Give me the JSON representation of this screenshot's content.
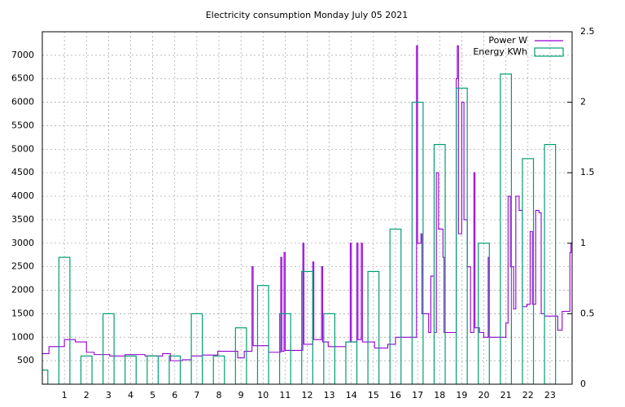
{
  "chart_data": {
    "type": "line",
    "title": "Electricity consumption Monday July 05 2021",
    "xlim": [
      0,
      24
    ],
    "xticks": [
      1,
      2,
      3,
      4,
      5,
      6,
      7,
      8,
      9,
      10,
      11,
      12,
      13,
      14,
      15,
      16,
      17,
      18,
      19,
      20,
      21,
      22,
      23
    ],
    "ylim": [
      0,
      7500
    ],
    "yticks": [
      500,
      1000,
      1500,
      2000,
      2500,
      3000,
      3500,
      4000,
      4500,
      5000,
      5500,
      6000,
      6500,
      7000
    ],
    "y2lim": [
      0,
      2.5
    ],
    "y2ticks": [
      0,
      0.5,
      1,
      1.5,
      2,
      2.5
    ],
    "grid": true,
    "legend": "top-right",
    "series": [
      {
        "name": "Power W",
        "color": "#9400d3",
        "style": "steps",
        "x": [
          0,
          0.3,
          1.0,
          1.5,
          2.0,
          2.35,
          3.05,
          3.75,
          4.65,
          5.45,
          5.8,
          6.35,
          6.75,
          7.25,
          7.95,
          8.85,
          9.15,
          9.5,
          9.55,
          10.25,
          10.8,
          10.85,
          10.95,
          11.0,
          11.8,
          11.85,
          12.25,
          12.3,
          12.65,
          12.7,
          12.95,
          13.75,
          13.95,
          14.0,
          14.25,
          14.3,
          14.45,
          14.5,
          15.05,
          15.65,
          16.0,
          16.95,
          17.0,
          17.15,
          17.2,
          17.5,
          17.6,
          17.75,
          17.85,
          17.95,
          18.15,
          18.2,
          18.75,
          18.8,
          18.85,
          19.0,
          19.1,
          19.25,
          19.4,
          19.55,
          19.6,
          19.8,
          20.0,
          20.2,
          20.25,
          20.9,
          21.0,
          21.1,
          21.2,
          21.35,
          21.45,
          21.6,
          21.75,
          21.95,
          22.1,
          22.2,
          22.35,
          22.5,
          22.6,
          22.75,
          23.35,
          23.55,
          23.9,
          23.95
        ],
        "values": [
          650,
          800,
          950,
          900,
          680,
          630,
          600,
          630,
          600,
          650,
          500,
          520,
          600,
          620,
          700,
          560,
          700,
          2500,
          820,
          680,
          2700,
          700,
          2800,
          720,
          3000,
          850,
          2600,
          950,
          2500,
          900,
          800,
          900,
          3000,
          900,
          3000,
          950,
          3000,
          900,
          770,
          850,
          1000,
          7200,
          3000,
          3200,
          1500,
          1100,
          2300,
          1100,
          4500,
          3300,
          2700,
          1100,
          6500,
          7200,
          3200,
          6000,
          3500,
          2500,
          1100,
          4500,
          1200,
          1100,
          1000,
          2700,
          1000,
          1000,
          1300,
          4000,
          2500,
          1600,
          4000,
          3700,
          1650,
          1700,
          3250,
          1700,
          3700,
          3650,
          1500,
          1450,
          1150,
          1550,
          2800,
          3000
        ]
      },
      {
        "name": "Energy KWh",
        "color": "#009e73",
        "axis": "y2",
        "style": "boxes",
        "x": [
          0,
          1,
          2,
          3,
          4,
          5,
          6,
          7,
          8,
          9,
          10,
          11,
          12,
          13,
          14,
          15,
          16,
          17,
          18,
          19,
          20,
          21,
          22,
          23
        ],
        "values": [
          0.1,
          0.9,
          0.2,
          0.5,
          0.2,
          0.2,
          0.2,
          0.5,
          0.2,
          0.4,
          0.7,
          0.5,
          0.8,
          0.5,
          0.3,
          0.8,
          1.1,
          2.0,
          1.7,
          2.1,
          1.0,
          2.2,
          1.6,
          1.7
        ]
      }
    ]
  }
}
